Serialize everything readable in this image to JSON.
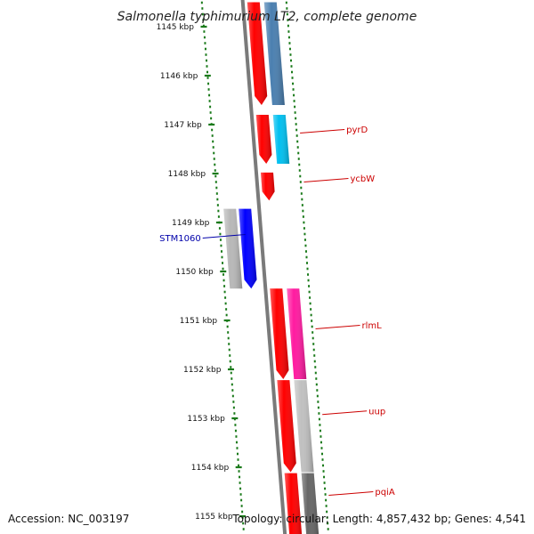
{
  "title": "Salmonella typhimurium LT2, complete genome",
  "footer": {
    "accession": "Accession: NC_003197",
    "topology": "Topology: circular; Length: 4,857,432 bp; Genes: 4,541"
  },
  "ruler": {
    "unit": "kbp",
    "ticks": [
      {
        "kbp": 1145,
        "label": "1145 kbp"
      },
      {
        "kbp": 1146,
        "label": "1146 kbp"
      },
      {
        "kbp": 1147,
        "label": "1147 kbp"
      },
      {
        "kbp": 1148,
        "label": "1148 kbp"
      },
      {
        "kbp": 1149,
        "label": "1149 kbp"
      },
      {
        "kbp": 1150,
        "label": "1150 kbp"
      },
      {
        "kbp": 1151,
        "label": "1151 kbp"
      },
      {
        "kbp": 1152,
        "label": "1152 kbp"
      },
      {
        "kbp": 1153,
        "label": "1153 kbp"
      },
      {
        "kbp": 1154,
        "label": "1154 kbp"
      },
      {
        "kbp": 1155,
        "label": "1155 kbp"
      }
    ]
  },
  "colors": {
    "backbone": "#7a7a7a",
    "tick": "#1a7a1a",
    "label_forward": "#cc0000",
    "label_reverse": "#0000aa"
  },
  "features": [
    {
      "track": "inner_forward",
      "start": 1144.5,
      "end": 1146.6,
      "color": "#ff0000",
      "arrow": true
    },
    {
      "track": "outer_forward",
      "start": 1144.5,
      "end": 1146.6,
      "color": "#4a7fb0",
      "arrow": false
    },
    {
      "track": "inner_forward",
      "start": 1146.8,
      "end": 1147.8,
      "color": "#ff0000",
      "arrow": true
    },
    {
      "track": "outer_forward",
      "start": 1146.8,
      "end": 1147.8,
      "color": "#00c0f0",
      "arrow": false
    },
    {
      "track": "inner_forward",
      "start": 1147.98,
      "end": 1148.55,
      "color": "#ff0000",
      "arrow": true
    },
    {
      "track": "outer_reverse",
      "start": 1148.72,
      "end": 1150.35,
      "color": "#b8b8b8",
      "arrow": false
    },
    {
      "track": "inner_reverse",
      "start": 1148.72,
      "end": 1150.35,
      "color": "#0000ff",
      "arrow": true
    },
    {
      "track": "inner_forward",
      "start": 1150.35,
      "end": 1152.2,
      "color": "#ff0000",
      "arrow": true
    },
    {
      "track": "outer_forward",
      "start": 1150.35,
      "end": 1152.2,
      "color": "#ff1aa0",
      "arrow": false
    },
    {
      "track": "inner_forward",
      "start": 1152.22,
      "end": 1154.1,
      "color": "#ff0000",
      "arrow": true
    },
    {
      "track": "outer_forward",
      "start": 1152.22,
      "end": 1154.1,
      "color": "#c0c0c0",
      "arrow": false
    },
    {
      "track": "inner_forward",
      "start": 1154.12,
      "end": 1155.6,
      "color": "#ff0000",
      "arrow": false
    },
    {
      "track": "outer_forward",
      "start": 1154.12,
      "end": 1155.6,
      "color": "#666666",
      "arrow": false
    }
  ],
  "labels": [
    {
      "text": "pyrD",
      "kbp": 1147.1,
      "side": "right",
      "color": "#cc0000"
    },
    {
      "text": "ycbW",
      "kbp": 1148.1,
      "side": "right",
      "color": "#cc0000"
    },
    {
      "text": "STM1060",
      "kbp": 1149.3,
      "side": "left",
      "color": "#0000aa"
    },
    {
      "text": "rlmL",
      "kbp": 1151.1,
      "side": "right",
      "color": "#cc0000"
    },
    {
      "text": "uup",
      "kbp": 1152.85,
      "side": "right",
      "color": "#cc0000"
    },
    {
      "text": "pqiA",
      "kbp": 1154.5,
      "side": "right",
      "color": "#cc0000"
    }
  ]
}
